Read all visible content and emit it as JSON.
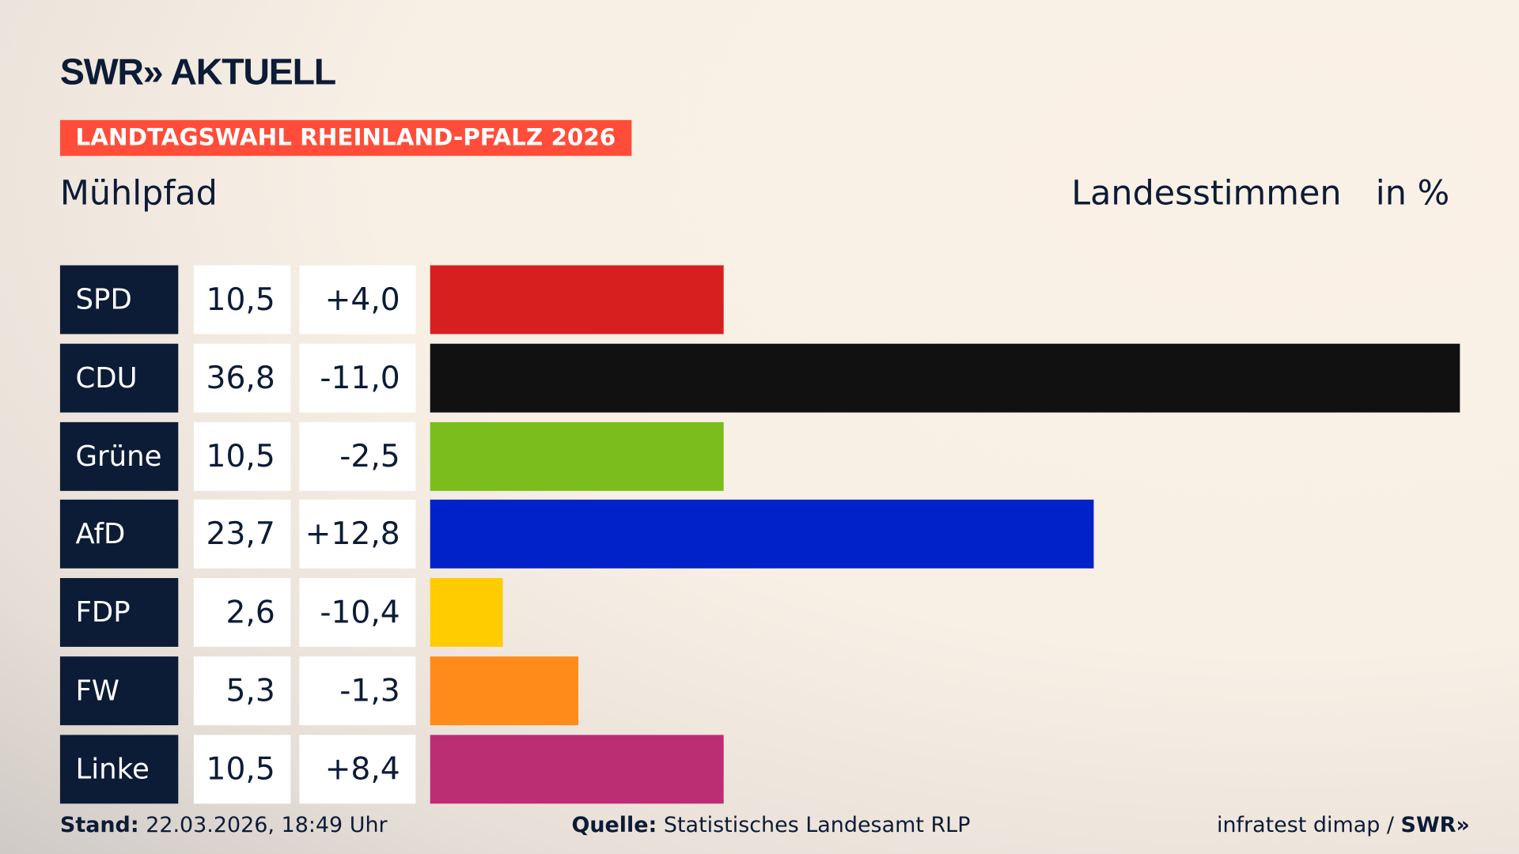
{
  "header": {
    "logo": "SWR» AKTUELL",
    "badge": "LANDTAGSWAHL RHEINLAND-PFALZ 2026",
    "place": "Mühlpfad",
    "col_label": "Landesstimmen",
    "unit": "in %"
  },
  "chart_data": {
    "type": "bar",
    "orientation": "horizontal",
    "categories": [
      "SPD",
      "CDU",
      "Grüne",
      "AfD",
      "FDP",
      "FW",
      "Linke"
    ],
    "values": [
      10.5,
      36.8,
      10.5,
      23.7,
      2.6,
      5.3,
      10.5
    ],
    "value_labels": [
      "10,5",
      "36,8",
      "10,5",
      "23,7",
      "2,6",
      "5,3",
      "10,5"
    ],
    "diff_labels": [
      "+4,0",
      "-11,0",
      "-2,5",
      "+12,8",
      "-10,4",
      "-1,3",
      "+8,4"
    ],
    "colors": [
      "#d81f1f",
      "#111111",
      "#7bbd1c",
      "#0022c8",
      "#ffcc00",
      "#ff8c1a",
      "#bc2e74"
    ],
    "xlim": [
      0,
      36.8
    ]
  },
  "footer": {
    "stand_label": "Stand:",
    "stand": "22.03.2026, 18:49 Uhr",
    "quelle_label": "Quelle:",
    "quelle": "Statistisches Landesamt RLP",
    "credit": "infratest dimap /",
    "credit_logo": "SWR»"
  }
}
